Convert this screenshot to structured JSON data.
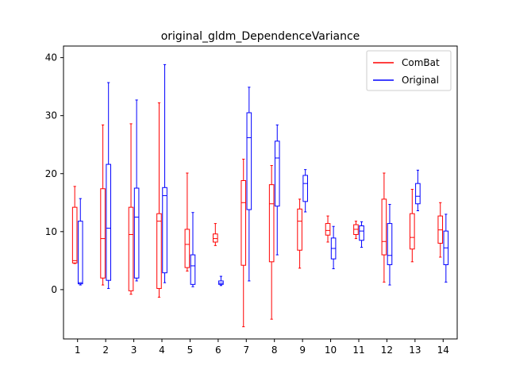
{
  "chart_data": {
    "type": "box",
    "title": "original_gldm_DependenceVariance",
    "xlabel": "",
    "ylabel": "",
    "categories": [
      "1",
      "2",
      "3",
      "4",
      "5",
      "6",
      "7",
      "8",
      "9",
      "10",
      "11",
      "12",
      "13",
      "14"
    ],
    "yticks": [
      0,
      10,
      20,
      30,
      40
    ],
    "ylim": [
      -8.5,
      42
    ],
    "grid": false,
    "legend_position": "top-right",
    "series": [
      {
        "name": "ComBat",
        "color": "#ff0000",
        "boxes": [
          {
            "whislo": 4.5,
            "q1": 4.6,
            "med": 5.0,
            "q3": 14.2,
            "whishi": 17.8
          },
          {
            "whislo": 0.8,
            "q1": 2.0,
            "med": 8.8,
            "q3": 17.4,
            "whishi": 28.4
          },
          {
            "whislo": -0.8,
            "q1": -0.2,
            "med": 9.5,
            "q3": 14.2,
            "whishi": 28.6
          },
          {
            "whislo": -1.3,
            "q1": 0.2,
            "med": 11.8,
            "q3": 13.1,
            "whishi": 32.2
          },
          {
            "whislo": 3.2,
            "q1": 3.8,
            "med": 7.8,
            "q3": 10.4,
            "whishi": 20.1
          },
          {
            "whislo": 7.6,
            "q1": 8.2,
            "med": 8.8,
            "q3": 9.6,
            "whishi": 11.4
          },
          {
            "whislo": -6.4,
            "q1": 4.2,
            "med": 15.0,
            "q3": 18.8,
            "whishi": 22.5
          },
          {
            "whislo": -5.1,
            "q1": 4.8,
            "med": 14.8,
            "q3": 18.1,
            "whishi": 21.4
          },
          {
            "whislo": 3.7,
            "q1": 6.8,
            "med": 11.8,
            "q3": 13.9,
            "whishi": 15.6
          },
          {
            "whislo": 8.2,
            "q1": 9.4,
            "med": 10.2,
            "q3": 11.4,
            "whishi": 12.7
          },
          {
            "whislo": 8.8,
            "q1": 9.5,
            "med": 10.4,
            "q3": 11.2,
            "whishi": 11.8
          },
          {
            "whislo": 1.3,
            "q1": 6.0,
            "med": 8.3,
            "q3": 15.6,
            "whishi": 20.1
          },
          {
            "whislo": 4.8,
            "q1": 7.0,
            "med": 9.0,
            "q3": 13.1,
            "whishi": 17.3
          },
          {
            "whislo": 5.6,
            "q1": 8.0,
            "med": 10.3,
            "q3": 12.7,
            "whishi": 15.0
          }
        ]
      },
      {
        "name": "Original",
        "color": "#0000ff",
        "boxes": [
          {
            "whislo": 0.8,
            "q1": 1.0,
            "med": 1.2,
            "q3": 11.8,
            "whishi": 15.7
          },
          {
            "whislo": 0.2,
            "q1": 1.6,
            "med": 10.6,
            "q3": 21.6,
            "whishi": 35.7
          },
          {
            "whislo": 1.5,
            "q1": 2.0,
            "med": 12.5,
            "q3": 17.5,
            "whishi": 32.7
          },
          {
            "whislo": 1.2,
            "q1": 2.9,
            "med": 16.2,
            "q3": 17.6,
            "whishi": 38.8
          },
          {
            "whislo": 0.5,
            "q1": 0.9,
            "med": 4.1,
            "q3": 6.0,
            "whishi": 13.3
          },
          {
            "whislo": 0.7,
            "q1": 0.9,
            "med": 1.1,
            "q3": 1.5,
            "whishi": 2.3
          },
          {
            "whislo": 1.5,
            "q1": 13.8,
            "med": 26.2,
            "q3": 30.5,
            "whishi": 34.9
          },
          {
            "whislo": 6.0,
            "q1": 14.4,
            "med": 22.7,
            "q3": 25.6,
            "whishi": 28.4
          },
          {
            "whislo": 13.4,
            "q1": 15.2,
            "med": 18.3,
            "q3": 19.7,
            "whishi": 20.7
          },
          {
            "whislo": 3.6,
            "q1": 5.3,
            "med": 7.1,
            "q3": 8.9,
            "whishi": 10.9
          },
          {
            "whislo": 7.3,
            "q1": 8.5,
            "med": 10.1,
            "q3": 11.0,
            "whishi": 11.7
          },
          {
            "whislo": 0.8,
            "q1": 4.3,
            "med": 5.9,
            "q3": 11.4,
            "whishi": 14.7
          },
          {
            "whislo": 13.6,
            "q1": 14.8,
            "med": 16.1,
            "q3": 18.3,
            "whishi": 20.6
          },
          {
            "whislo": 1.3,
            "q1": 4.3,
            "med": 7.2,
            "q3": 10.1,
            "whishi": 13.0
          }
        ]
      }
    ]
  }
}
